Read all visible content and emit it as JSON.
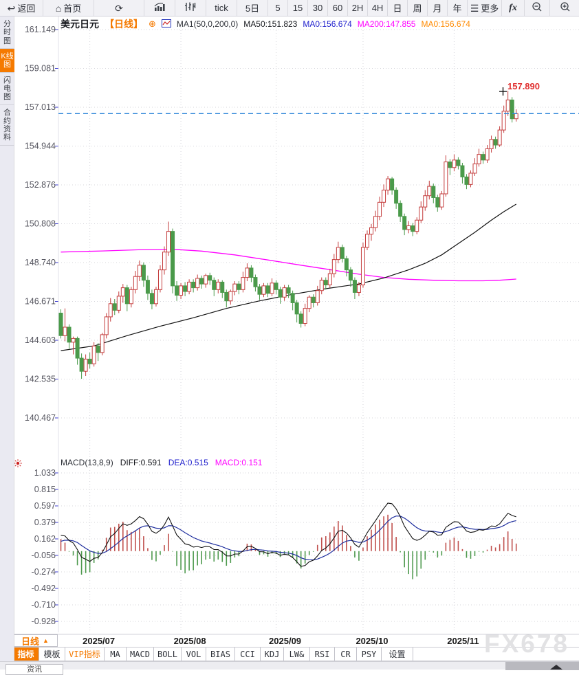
{
  "toolbar": {
    "items": [
      {
        "name": "back-button",
        "glyph": "↩",
        "label": "返回"
      },
      {
        "name": "home-button",
        "glyph": "⌂",
        "label": "首页"
      },
      {
        "name": "refresh-button",
        "glyph": "⟳",
        "label": ""
      },
      {
        "name": "bar-chart-button",
        "svg": "barChart",
        "label": ""
      },
      {
        "name": "candlestick-button",
        "svg": "candles",
        "label": ""
      },
      {
        "name": "interval-tick-button",
        "label": "tick"
      },
      {
        "name": "interval-5d-button",
        "label": "5日"
      },
      {
        "name": "interval-5-button",
        "label": "5"
      },
      {
        "name": "interval-15-button",
        "label": "15"
      },
      {
        "name": "interval-30-button",
        "label": "30"
      },
      {
        "name": "interval-60-button",
        "label": "60"
      },
      {
        "name": "interval-2h-button",
        "label": "2H"
      },
      {
        "name": "interval-4h-button",
        "label": "4H"
      },
      {
        "name": "interval-day-button",
        "label": "日"
      },
      {
        "name": "interval-week-button",
        "label": "周"
      },
      {
        "name": "interval-month-button",
        "label": "月"
      },
      {
        "name": "interval-year-button",
        "label": "年"
      },
      {
        "name": "more-button",
        "glyph": "☰",
        "label": "更多"
      },
      {
        "name": "fx-button",
        "fx": "fx",
        "label": ""
      },
      {
        "name": "zoom-out-button",
        "svg": "zoomOut",
        "label": ""
      },
      {
        "name": "zoom-in-button",
        "svg": "zoomIn",
        "label": ""
      }
    ]
  },
  "sidebar": {
    "tabs": [
      {
        "label": "分时图",
        "active": false
      },
      {
        "label": "K线图",
        "active": true
      },
      {
        "label": "闪电图",
        "active": false
      },
      {
        "label": "合约资料",
        "active": false
      }
    ]
  },
  "chart_header": {
    "symbol": "美元日元",
    "period": "【日线】",
    "ma_label": "MA1(50,0,200,0)",
    "ma50": "MA50:151.823",
    "ma0_blue": "MA0:156.674",
    "ma200": "MA200:147.855",
    "ma0_orange": "MA0:156.674"
  },
  "macd_header": {
    "label": "MACD(13,8,9)",
    "diff": "DIFF:0.591",
    "dea": "DEA:0.515",
    "macd": "MACD:0.151"
  },
  "xaxis": {
    "period_label": "日线",
    "dropdown_arrow": "▲"
  },
  "indicator_bar": {
    "tabs": [
      {
        "label": "指标",
        "style": "active"
      },
      {
        "label": "模板",
        "style": ""
      },
      {
        "label": "VIP指标",
        "style": "vip"
      },
      {
        "label": "MA",
        "style": ""
      },
      {
        "label": "MACD",
        "style": ""
      },
      {
        "label": "BOLL",
        "style": ""
      },
      {
        "label": "VOL",
        "style": ""
      },
      {
        "label": "BIAS",
        "style": ""
      },
      {
        "label": "CCI",
        "style": ""
      },
      {
        "label": "KDJ",
        "style": ""
      },
      {
        "label": "LW&",
        "style": ""
      },
      {
        "label": "RSI",
        "style": ""
      },
      {
        "label": "CR",
        "style": ""
      },
      {
        "label": "PSY",
        "style": ""
      },
      {
        "label": "设置",
        "style": ""
      }
    ]
  },
  "watermark": "FX678",
  "bottom": {
    "news_tab": "资讯"
  },
  "colors": {
    "candle_up": "#c43c3c",
    "candle_down": "#4a9a4a",
    "ma50": "#111111",
    "ma200": "#ff00ff",
    "diff_line": "#111111",
    "dea_line": "#1f2f9e",
    "hist_up": "#c0504d",
    "hist_down": "#4e9a4e",
    "price_line": "#2f86d8",
    "high_label": "#e03030",
    "accent_orange": "#f57a00",
    "grid": "#d4d4da",
    "axis_text": "#54545e",
    "tick_blue": "#3a3ad0"
  },
  "chart_data": {
    "type": "candlestick",
    "title": "美元日元 日线 (USD/JPY daily with MA50/MA200 and MACD)",
    "y_axis_labels": [
      "161.149",
      "159.081",
      "157.013",
      "154.944",
      "152.876",
      "150.808",
      "148.740",
      "146.671",
      "144.603",
      "142.535",
      "140.467"
    ],
    "macd_axis_labels": [
      "1.033",
      "0.815",
      "0.597",
      "0.379",
      "0.162",
      "-0.056",
      "-0.274",
      "-0.492",
      "-0.710",
      "-0.928"
    ],
    "x_ticks": [
      {
        "label": "2025/07",
        "index": 7
      },
      {
        "label": "2025/08",
        "index": 29
      },
      {
        "label": "2025/09",
        "index": 52
      },
      {
        "label": "2025/10",
        "index": 73
      },
      {
        "label": "2025/11",
        "index": 95
      }
    ],
    "current_price": 156.674,
    "high_annotation": "157.890",
    "macd_params": [
      13,
      8,
      9
    ],
    "macd_values": {
      "diff": 0.591,
      "dea": 0.515,
      "macd": 0.151
    },
    "candles": [
      [
        146.05,
        146.25,
        144.7,
        144.85
      ],
      [
        144.85,
        146.3,
        144.55,
        145.3
      ],
      [
        145.3,
        145.45,
        144.15,
        144.5
      ],
      [
        144.5,
        144.8,
        143.85,
        144.7
      ],
      [
        144.7,
        144.8,
        143.3,
        143.65
      ],
      [
        143.65,
        143.9,
        142.55,
        142.95
      ],
      [
        142.95,
        143.85,
        142.7,
        143.6
      ],
      [
        143.6,
        143.95,
        143.1,
        143.35
      ],
      [
        143.35,
        144.5,
        143.2,
        144.3
      ],
      [
        144.3,
        144.45,
        143.5,
        143.95
      ],
      [
        143.95,
        145.0,
        143.8,
        144.9
      ],
      [
        144.9,
        146.05,
        144.7,
        145.85
      ],
      [
        145.85,
        146.85,
        145.6,
        146.55
      ],
      [
        146.55,
        146.8,
        145.95,
        146.2
      ],
      [
        146.2,
        147.2,
        146.05,
        146.95
      ],
      [
        146.95,
        147.6,
        146.6,
        147.4
      ],
      [
        147.4,
        147.55,
        146.15,
        146.55
      ],
      [
        146.55,
        147.45,
        146.35,
        147.3
      ],
      [
        147.3,
        148.3,
        147.1,
        148.0
      ],
      [
        148.0,
        148.85,
        147.75,
        148.6
      ],
      [
        148.6,
        148.75,
        147.45,
        147.8
      ],
      [
        147.8,
        148.05,
        146.75,
        147.1
      ],
      [
        147.1,
        147.3,
        146.25,
        146.55
      ],
      [
        146.55,
        147.45,
        146.4,
        147.3
      ],
      [
        147.3,
        148.6,
        147.15,
        148.35
      ],
      [
        148.35,
        149.6,
        148.1,
        149.3
      ],
      [
        149.3,
        150.92,
        149.1,
        150.4
      ],
      [
        150.4,
        150.55,
        147.1,
        147.5
      ],
      [
        147.5,
        147.75,
        146.7,
        147.0
      ],
      [
        147.0,
        147.65,
        146.8,
        147.5
      ],
      [
        147.5,
        147.7,
        146.95,
        147.2
      ],
      [
        147.2,
        147.85,
        147.05,
        147.7
      ],
      [
        147.7,
        147.85,
        147.15,
        147.4
      ],
      [
        147.4,
        148.1,
        147.25,
        147.9
      ],
      [
        147.9,
        148.05,
        147.35,
        147.6
      ],
      [
        147.6,
        148.15,
        147.4,
        148.05
      ],
      [
        148.05,
        148.2,
        147.55,
        147.8
      ],
      [
        147.8,
        147.95,
        146.95,
        147.3
      ],
      [
        147.3,
        147.85,
        147.1,
        147.7
      ],
      [
        147.7,
        147.8,
        146.85,
        147.15
      ],
      [
        147.15,
        147.3,
        146.35,
        146.7
      ],
      [
        146.7,
        147.3,
        146.5,
        147.2
      ],
      [
        147.2,
        147.75,
        147.0,
        147.6
      ],
      [
        147.6,
        147.75,
        147.05,
        147.3
      ],
      [
        147.3,
        148.25,
        147.15,
        147.95
      ],
      [
        147.95,
        148.7,
        147.75,
        148.45
      ],
      [
        148.45,
        148.6,
        147.7,
        147.95
      ],
      [
        147.95,
        148.1,
        147.2,
        147.45
      ],
      [
        147.45,
        147.6,
        146.75,
        147.05
      ],
      [
        147.05,
        147.65,
        146.9,
        147.5
      ],
      [
        147.5,
        147.65,
        146.9,
        147.1
      ],
      [
        147.1,
        147.9,
        146.95,
        147.65
      ],
      [
        147.65,
        147.8,
        147.05,
        147.3
      ],
      [
        147.3,
        147.45,
        146.55,
        146.9
      ],
      [
        146.9,
        147.55,
        146.7,
        147.4
      ],
      [
        147.4,
        147.55,
        146.85,
        147.1
      ],
      [
        147.1,
        147.25,
        146.2,
        146.6
      ],
      [
        146.6,
        146.75,
        145.55,
        146.0
      ],
      [
        146.0,
        146.15,
        145.28,
        145.5
      ],
      [
        145.5,
        146.55,
        145.35,
        146.3
      ],
      [
        146.3,
        147.0,
        146.1,
        146.9
      ],
      [
        146.9,
        147.05,
        146.35,
        146.6
      ],
      [
        146.6,
        147.5,
        146.45,
        147.25
      ],
      [
        147.25,
        147.95,
        147.05,
        147.8
      ],
      [
        147.8,
        147.95,
        147.3,
        147.55
      ],
      [
        147.55,
        148.4,
        147.4,
        148.15
      ],
      [
        148.15,
        149.2,
        147.95,
        148.9
      ],
      [
        148.9,
        149.85,
        148.7,
        149.55
      ],
      [
        149.55,
        149.7,
        148.75,
        148.95
      ],
      [
        148.95,
        149.1,
        148.0,
        148.35
      ],
      [
        148.35,
        148.5,
        147.45,
        147.8
      ],
      [
        147.8,
        147.95,
        146.8,
        147.15
      ],
      [
        147.15,
        147.7,
        146.95,
        147.55
      ],
      [
        147.55,
        149.8,
        147.4,
        149.55
      ],
      [
        149.55,
        150.45,
        149.4,
        150.25
      ],
      [
        150.25,
        150.8,
        149.9,
        150.6
      ],
      [
        150.6,
        151.5,
        150.4,
        151.2
      ],
      [
        151.2,
        152.25,
        151.0,
        151.95
      ],
      [
        151.95,
        152.9,
        151.7,
        152.6
      ],
      [
        152.6,
        153.35,
        152.35,
        153.2
      ],
      [
        153.2,
        153.3,
        152.35,
        152.6
      ],
      [
        152.6,
        152.75,
        151.6,
        151.9
      ],
      [
        151.9,
        152.05,
        150.9,
        151.2
      ],
      [
        151.2,
        151.35,
        150.2,
        150.5
      ],
      [
        150.5,
        150.95,
        150.3,
        150.7
      ],
      [
        150.7,
        150.85,
        150.15,
        150.4
      ],
      [
        150.4,
        151.15,
        150.25,
        151.0
      ],
      [
        151.0,
        152.0,
        150.85,
        151.7
      ],
      [
        151.7,
        152.6,
        151.5,
        152.3
      ],
      [
        152.3,
        153.1,
        152.1,
        152.8
      ],
      [
        152.8,
        152.95,
        151.9,
        152.2
      ],
      [
        152.2,
        152.35,
        151.45,
        151.7
      ],
      [
        151.7,
        152.55,
        151.55,
        152.4
      ],
      [
        152.4,
        154.45,
        152.25,
        154.1
      ],
      [
        154.1,
        154.25,
        153.4,
        153.8
      ],
      [
        153.8,
        154.5,
        153.6,
        154.2
      ],
      [
        154.2,
        154.35,
        153.7,
        153.9
      ],
      [
        153.9,
        154.05,
        152.95,
        153.3
      ],
      [
        153.3,
        153.45,
        152.65,
        152.9
      ],
      [
        152.9,
        153.65,
        152.75,
        153.5
      ],
      [
        153.5,
        154.3,
        153.35,
        154.0
      ],
      [
        154.0,
        154.8,
        153.85,
        154.5
      ],
      [
        154.5,
        154.65,
        154.0,
        154.2
      ],
      [
        154.2,
        155.0,
        154.05,
        154.8
      ],
      [
        154.8,
        155.5,
        154.6,
        155.3
      ],
      [
        155.3,
        155.45,
        154.8,
        155.0
      ],
      [
        155.0,
        156.0,
        154.9,
        155.8
      ],
      [
        155.8,
        157.1,
        155.65,
        156.8
      ],
      [
        156.8,
        157.89,
        156.55,
        157.4
      ],
      [
        157.4,
        157.55,
        156.2,
        156.4
      ],
      [
        156.4,
        156.9,
        156.25,
        156.674
      ]
    ],
    "ma50_waypoints": [
      [
        0,
        144.05
      ],
      [
        8,
        144.3
      ],
      [
        16,
        144.85
      ],
      [
        24,
        145.35
      ],
      [
        32,
        145.8
      ],
      [
        40,
        146.3
      ],
      [
        48,
        146.7
      ],
      [
        56,
        147.05
      ],
      [
        64,
        147.35
      ],
      [
        72,
        147.6
      ],
      [
        78,
        147.92
      ],
      [
        84,
        148.35
      ],
      [
        88,
        148.7
      ],
      [
        92,
        149.15
      ],
      [
        96,
        149.75
      ],
      [
        100,
        150.35
      ],
      [
        104,
        151.0
      ],
      [
        107,
        151.45
      ],
      [
        110,
        151.85
      ]
    ],
    "ma200_waypoints": [
      [
        0,
        149.3
      ],
      [
        10,
        149.36
      ],
      [
        20,
        149.43
      ],
      [
        27,
        149.45
      ],
      [
        34,
        149.35
      ],
      [
        42,
        149.15
      ],
      [
        50,
        148.88
      ],
      [
        58,
        148.6
      ],
      [
        66,
        148.33
      ],
      [
        72,
        148.12
      ],
      [
        78,
        147.95
      ],
      [
        84,
        147.85
      ],
      [
        90,
        147.8
      ],
      [
        96,
        147.77
      ],
      [
        102,
        147.77
      ],
      [
        106,
        147.8
      ],
      [
        110,
        147.86
      ]
    ]
  }
}
